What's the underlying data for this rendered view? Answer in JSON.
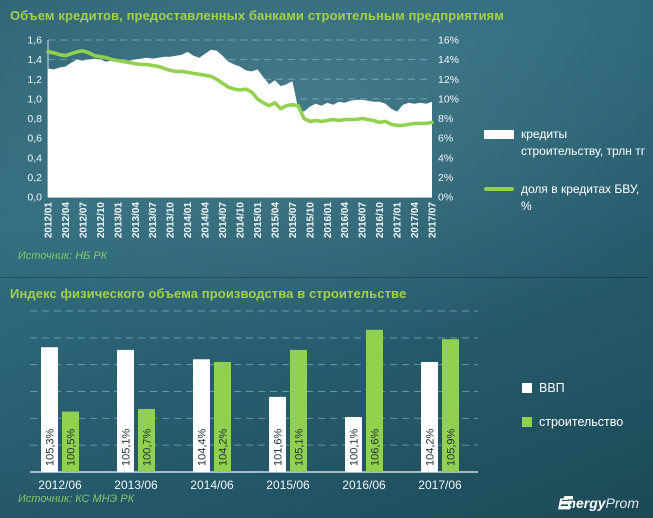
{
  "chart_data": [
    {
      "id": "credits",
      "type": "area+line",
      "title": "Объем кредитов, предоставленных банками строительным предприятиям",
      "source": "Источник: НБ РК",
      "x_tick_labels": [
        "2012/01",
        "2012/04",
        "2012/07",
        "2012/10",
        "2013/01",
        "2013/04",
        "2013/07",
        "2013/10",
        "2014/01",
        "2014/04",
        "2014/07",
        "2014/10",
        "2015/01",
        "2015/04",
        "2015/07",
        "2015/10",
        "2016/01",
        "2016/04",
        "2016/07",
        "2016/10",
        "2017/01",
        "2017/04",
        "2017/07"
      ],
      "x_monthly_points": 67,
      "left_axis": {
        "min": 0,
        "max": 1.6,
        "step": 0.2,
        "labels": [
          "0,0",
          "0,2",
          "0,4",
          "0,6",
          "0,8",
          "1,0",
          "1,2",
          "1,4",
          "1,6"
        ]
      },
      "right_axis": {
        "min": 0,
        "max": 16,
        "step": 2,
        "labels": [
          "0%",
          "2%",
          "4%",
          "6%",
          "8%",
          "10%",
          "12%",
          "14%",
          "16%"
        ]
      },
      "grid": true,
      "legend_position": "right",
      "series": [
        {
          "name": "кредиты строительству, трлн тг",
          "type": "area",
          "axis": "left",
          "color": "#ffffff",
          "values": [
            1.31,
            1.3,
            1.32,
            1.33,
            1.37,
            1.4,
            1.39,
            1.4,
            1.41,
            1.4,
            1.38,
            1.39,
            1.4,
            1.38,
            1.39,
            1.4,
            1.41,
            1.42,
            1.41,
            1.42,
            1.43,
            1.43,
            1.44,
            1.45,
            1.48,
            1.44,
            1.42,
            1.46,
            1.5,
            1.49,
            1.44,
            1.38,
            1.35,
            1.33,
            1.29,
            1.28,
            1.3,
            1.22,
            1.15,
            1.19,
            1.13,
            1.15,
            1.18,
            0.9,
            0.87,
            0.92,
            0.95,
            0.93,
            0.96,
            0.94,
            0.97,
            0.96,
            0.98,
            0.99,
            0.99,
            0.98,
            0.97,
            0.97,
            0.95,
            0.9,
            0.87,
            0.94,
            0.96,
            0.95,
            0.96,
            0.95,
            0.97
          ]
        },
        {
          "name": "доля в кредитах БВУ, %",
          "type": "line",
          "axis": "right",
          "color": "#92d050",
          "values": [
            14.8,
            14.7,
            14.5,
            14.4,
            14.6,
            14.8,
            14.9,
            14.7,
            14.4,
            14.3,
            14.2,
            14.0,
            13.9,
            13.8,
            13.7,
            13.6,
            13.5,
            13.5,
            13.4,
            13.3,
            13.1,
            12.9,
            12.8,
            12.8,
            12.7,
            12.6,
            12.5,
            12.4,
            12.3,
            12.0,
            11.6,
            11.2,
            11.0,
            10.9,
            11.0,
            10.7,
            10.0,
            9.6,
            9.3,
            9.6,
            9.0,
            9.3,
            9.4,
            9.3,
            8.0,
            7.7,
            7.8,
            7.7,
            7.8,
            7.9,
            7.8,
            7.9,
            7.9,
            7.9,
            8.0,
            7.9,
            7.8,
            7.6,
            7.7,
            7.4,
            7.3,
            7.3,
            7.4,
            7.5,
            7.5,
            7.5,
            7.6
          ]
        }
      ]
    },
    {
      "id": "construction-index",
      "type": "bar",
      "title": "Индекс физического объема производства в строительстве",
      "source": "Источник: КС МНЭ РК",
      "categories": [
        "2012/06",
        "2013/06",
        "2014/06",
        "2015/06",
        "2016/06",
        "2017/06"
      ],
      "ylim": [
        96,
        108
      ],
      "grid_step": 2,
      "grid": true,
      "legend_position": "right",
      "series": [
        {
          "name": "ВВП",
          "color": "#ffffff",
          "values": [
            105.3,
            105.1,
            104.4,
            101.6,
            100.1,
            104.2
          ],
          "labels": [
            "105,3%",
            "105,1%",
            "104,4%",
            "101,6%",
            "100,1%",
            "104,2%"
          ]
        },
        {
          "name": "строительство",
          "color": "#92d050",
          "values": [
            100.5,
            100.7,
            104.2,
            105.1,
            106.6,
            105.9
          ],
          "labels": [
            "100,5%",
            "100,7%",
            "104,2%",
            "105,1%",
            "106,6%",
            "105,9%"
          ]
        }
      ]
    }
  ],
  "footer": {
    "brand_bold": "Energy",
    "brand_light": "Prom"
  }
}
